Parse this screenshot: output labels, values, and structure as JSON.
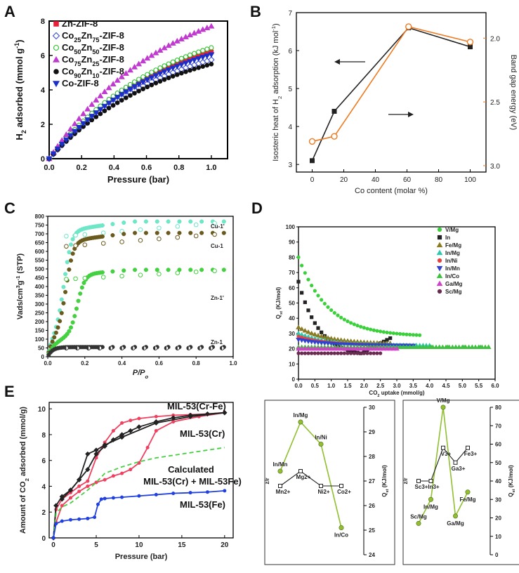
{
  "figure": {
    "panel_labels": [
      "A",
      "B",
      "C",
      "D",
      "E"
    ]
  },
  "chart_data": [
    {
      "id": "A",
      "type": "scatter",
      "title": "",
      "xlabel": "Pressure (bar)",
      "ylabel": "H2 adsorbed (mmol g-1)",
      "ylabel_parts": {
        "main": "H",
        "sub": "2",
        "rest": " adsorbed (mmol g",
        "sup": "-1",
        "end": ")"
      },
      "xlim": [
        0,
        1.1
      ],
      "ylim": [
        0,
        8
      ],
      "xticks": [
        "0.0",
        "0.2",
        "0.4",
        "0.6",
        "0.8",
        "1.0"
      ],
      "yticks": [
        "0",
        "2",
        "4",
        "6",
        "8"
      ],
      "legend_position": "top-left",
      "series": [
        {
          "name": "Zn-ZIF-8",
          "legend_parts": [
            "Zn-ZIF-8"
          ],
          "marker": "square",
          "color": "#e8203a",
          "filled": true,
          "k": 6.2
        },
        {
          "name": "Co25Zn75-ZIF-8",
          "legend_parts": [
            "Co",
            "25",
            "Zn",
            "75",
            "-ZIF-8"
          ],
          "marker": "diamond",
          "color": "#3a4fd8",
          "filled": false,
          "k": 5.75
        },
        {
          "name": "Co50Zn50-ZIF-8",
          "legend_parts": [
            "Co",
            "50",
            "Zn",
            "50",
            "-ZIF-8"
          ],
          "marker": "circle",
          "color": "#2ec02e",
          "filled": false,
          "k": 6.45
        },
        {
          "name": "Co75Zn25-ZIF-8",
          "legend_parts": [
            "Co",
            "75",
            "Zn",
            "25",
            "-ZIF-8"
          ],
          "marker": "triangle",
          "color": "#c03ad0",
          "filled": true,
          "k": 7.7
        },
        {
          "name": "Co90Zn10-ZIF-8",
          "legend_parts": [
            "Co",
            "90",
            "Zn",
            "10",
            "-ZIF-8"
          ],
          "marker": "circle",
          "color": "#111111",
          "filled": true,
          "k": 5.5
        },
        {
          "name": "Co-ZIF-8",
          "legend_parts": [
            "Co-ZIF-8"
          ],
          "marker": "triangle-down",
          "color": "#1a30c8",
          "filled": true,
          "k": 6.05
        }
      ]
    },
    {
      "id": "B",
      "type": "line",
      "xlabel": "Co content (molar %)",
      "ylabel": "Isosteric heat of H2 adsorption (kJ mol-1)",
      "ylabel_parts": {
        "main": "Isosteric heat of H",
        "sub": "2",
        "rest": " adsorption (kJ mol",
        "sup": "-1",
        "end": ")"
      },
      "y2label": "Band gap energy (eV)",
      "xlim": [
        -10,
        110
      ],
      "ylim": [
        2.8,
        7
      ],
      "y2lim": [
        3.05,
        1.8
      ],
      "xticks": [
        "0",
        "20",
        "40",
        "60",
        "80",
        "100"
      ],
      "yticks": [
        "3",
        "4",
        "5",
        "6",
        "7"
      ],
      "y2ticks": [
        "2.0",
        "2.5",
        "3.0"
      ],
      "series": [
        {
          "name": "Isosteric heat",
          "color": "#222222",
          "x": [
            0,
            14,
            61,
            100
          ],
          "y": [
            3.1,
            4.4,
            6.6,
            6.1
          ]
        },
        {
          "name": "Band gap energy",
          "color": "#f07a20",
          "axis": "right",
          "x": [
            0,
            14,
            61,
            100
          ],
          "y": [
            2.81,
            2.77,
            1.91,
            2.03
          ]
        }
      ]
    },
    {
      "id": "C",
      "type": "scatter",
      "xlabel": "P/P0",
      "xlabel_parts": {
        "main": "P/P",
        "sub": "o"
      },
      "ylabel": "Vads/cm3g-1 (STP)",
      "ylabel_parts": {
        "main": "Vads/cm",
        "sup": "3",
        "rest": "g",
        "sup2": "-1",
        "end": " (STP)"
      },
      "xlim": [
        0,
        1.0
      ],
      "ylim": [
        0,
        800
      ],
      "xticks": [
        "0.0",
        "0.2",
        "0.4",
        "0.6",
        "0.8",
        "1.0"
      ],
      "yticks": [
        "0",
        "50",
        "100",
        "150",
        "200",
        "250",
        "300",
        "350",
        "400",
        "450",
        "500",
        "550",
        "600",
        "650",
        "700",
        "750",
        "800"
      ],
      "series": [
        {
          "name": "Cu-1'",
          "color": "#6ee6c8",
          "plateau": 770,
          "step": 0.09
        },
        {
          "name": "Cu-1",
          "color": "#6b5a1e",
          "plateau": 705,
          "step": 0.1
        },
        {
          "name": "Zn-1'",
          "color": "#44d040",
          "plateau": 495,
          "step": 0.16
        },
        {
          "name": "Zn-1",
          "color": "#333333",
          "plateau": 55,
          "step": 0.0
        }
      ]
    },
    {
      "id": "D",
      "type": "scatter",
      "xlabel": "CO2 uptake (mmol/g)",
      "xlabel_parts": {
        "main": "CO",
        "sub": "2",
        "rest": " uptake (mmol/g)"
      },
      "ylabel": "Qst (KJ/mol)",
      "ylabel_parts": {
        "main": "Q",
        "sub": "st",
        "rest": " (KJ/mol)"
      },
      "xlim": [
        0,
        6.0
      ],
      "ylim": [
        0,
        100
      ],
      "xticks": [
        "0.0",
        "0.5",
        "1.0",
        "1.5",
        "2.0",
        "2.5",
        "3.0",
        "3.5",
        "4.0",
        "4.5",
        "5.0",
        "5.5",
        "6.0"
      ],
      "yticks": [
        "0",
        "10",
        "20",
        "30",
        "40",
        "50",
        "60",
        "70",
        "80",
        "90",
        "100"
      ],
      "series": [
        {
          "name": "V/Mg",
          "color": "#3ad03a",
          "start": 80,
          "end": 28,
          "xmax": 3.7
        },
        {
          "name": "In",
          "color": "#222222",
          "start": 64,
          "end": 27,
          "xmax": 2.8
        },
        {
          "name": "Fe/Mg",
          "color": "#8a7a20",
          "start": 34,
          "end": 23,
          "xmax": 2.8
        },
        {
          "name": "In/Mg",
          "color": "#2ec8b0",
          "start": 30,
          "end": 22,
          "xmax": 4.0
        },
        {
          "name": "In/Ni",
          "color": "#e84040",
          "start": 28,
          "end": 22,
          "xmax": 2.6
        },
        {
          "name": "In/Mn",
          "color": "#3040d0",
          "start": 26,
          "end": 22,
          "xmax": 3.5
        },
        {
          "name": "In/Co",
          "color": "#40c040",
          "start": 21,
          "end": 21,
          "xmax": 5.8
        },
        {
          "name": "Ga/Mg",
          "color": "#d040c8",
          "start": 20,
          "end": 22,
          "xmax": 3.0
        },
        {
          "name": "Sc/Mg",
          "color": "#6a2a50",
          "start": 17,
          "end": 21,
          "xmax": 2.5
        }
      ]
    },
    {
      "id": "D-inset-1",
      "type": "line",
      "ylabel_left": "z/r",
      "ylabel_right": "Qst (KJ/mol)",
      "ylabel_right_parts": {
        "main": "Q",
        "sub": "st",
        "rest": " (KJ/mol)"
      },
      "ylim": [
        24,
        30
      ],
      "yticks": [
        "24",
        "25",
        "26",
        "27",
        "28",
        "29",
        "30"
      ],
      "series": [
        {
          "name": "Qst",
          "color": "#90c030",
          "labels": [
            "In/Mn",
            "In/Mg",
            "In/Ni",
            "In/Co"
          ],
          "y": [
            27.4,
            29.4,
            28.5,
            25.1
          ]
        },
        {
          "name": "z/r",
          "color": "#222222",
          "labels": [
            "Mn2+",
            "Mg2+",
            "Ni2+",
            "Co2+"
          ],
          "y": [
            26.8,
            27.4,
            26.8,
            26.8
          ]
        }
      ]
    },
    {
      "id": "D-inset-2",
      "type": "line",
      "ylabel_left": "z/r",
      "ylabel_right": "Qst (KJ/mol)",
      "ylabel_right_parts": {
        "main": "Q",
        "sub": "st",
        "rest": " (KJ/mol)"
      },
      "ylim": [
        0,
        80
      ],
      "yticks": [
        "0",
        "10",
        "20",
        "30",
        "40",
        "50",
        "60",
        "70",
        "80"
      ],
      "series": [
        {
          "name": "Qst",
          "color": "#90c030",
          "labels": [
            "Sc/Mg",
            "In/Mg",
            "V/Mg",
            "Ga/Mg",
            "Fe/Mg"
          ],
          "y": [
            17,
            30,
            80,
            21,
            34
          ]
        },
        {
          "name": "z/r",
          "color": "#222222",
          "labels": [
            "Sc3+",
            "In3+",
            "V3+",
            "Ga3+",
            "Fe3+"
          ],
          "y": [
            40,
            40,
            58,
            50,
            58
          ]
        }
      ]
    },
    {
      "id": "E",
      "type": "line",
      "xlabel": "Pressure (bar)",
      "ylabel": "Amount of CO2 adsorbed (mmol/g)",
      "ylabel_parts": {
        "main": "Amount of CO",
        "sub": "2",
        "rest": " adsorbed (mmol/g)"
      },
      "xlim": [
        -0.5,
        21
      ],
      "ylim": [
        0,
        10.5
      ],
      "xticks": [
        "0",
        "5",
        "10",
        "15",
        "20"
      ],
      "yticks": [
        "0",
        "2",
        "4",
        "6",
        "8",
        "10"
      ],
      "annotations": [
        "MIL-53(Cr-Fe)",
        "MIL-53(Cr)",
        "Calculated",
        "MIL-53(Cr) + MIL-53Fe)",
        "MIL-53(Fe)"
      ],
      "series": [
        {
          "name": "MIL-53(Cr-Fe)",
          "color": "#f04060",
          "x": [
            0,
            0.3,
            1,
            2,
            3,
            4,
            5,
            6,
            7,
            8,
            9,
            10,
            12,
            14,
            16,
            18,
            20
          ],
          "y": [
            0,
            2.2,
            3.0,
            3.5,
            4.0,
            4.4,
            6.2,
            7.4,
            8.3,
            8.9,
            9.1,
            9.25,
            9.4,
            9.5,
            9.55,
            9.6,
            9.7
          ]
        },
        {
          "name": "MIL-53(Cr-Fe) desorption",
          "color": "#f04060",
          "x": [
            20,
            17,
            14,
            12,
            11,
            10,
            9,
            8,
            7,
            6,
            5,
            4,
            3,
            2,
            1,
            0.3
          ],
          "y": [
            9.7,
            9.4,
            9.0,
            8.3,
            7.0,
            5.8,
            5.3,
            5.0,
            4.8,
            4.5,
            4.3,
            4.0,
            3.6,
            3.1,
            2.5,
            1.2
          ]
        },
        {
          "name": "MIL-53(Cr)",
          "color": "#222222",
          "x": [
            0,
            0.3,
            1,
            2,
            3,
            4,
            5,
            6,
            7,
            8,
            9,
            10,
            12,
            14,
            16,
            18,
            20
          ],
          "y": [
            0,
            2.5,
            3.2,
            3.7,
            4.5,
            5.3,
            6.5,
            7.1,
            7.6,
            8.0,
            8.3,
            8.6,
            9.0,
            9.3,
            9.5,
            9.6,
            9.7
          ]
        },
        {
          "name": "MIL-53(Cr) desorption",
          "color": "#222222",
          "x": [
            20,
            16,
            12,
            8,
            6,
            5,
            4,
            3,
            2,
            1
          ],
          "y": [
            9.7,
            9.4,
            8.9,
            7.8,
            7.2,
            6.8,
            6.5,
            4.5,
            3.7,
            3.0
          ]
        },
        {
          "name": "Calculated MIL-53(Cr) + MIL-53Fe)",
          "color": "#44d040",
          "dashed": true,
          "x": [
            0,
            0.3,
            1,
            2,
            3,
            4,
            5,
            6,
            8,
            10,
            12,
            14,
            16,
            18,
            20
          ],
          "y": [
            0,
            1.9,
            2.4,
            2.7,
            3.2,
            3.7,
            4.3,
            5.0,
            5.5,
            5.9,
            6.2,
            6.4,
            6.6,
            6.8,
            7.0
          ]
        },
        {
          "name": "MIL-53(Fe)",
          "color": "#2040e0",
          "x": [
            0,
            0.3,
            1,
            2,
            3,
            4,
            4.8,
            5.2,
            5.6,
            6,
            7,
            8,
            10,
            12,
            14,
            16,
            18,
            20
          ],
          "y": [
            0,
            1.1,
            1.3,
            1.4,
            1.45,
            1.5,
            1.6,
            2.6,
            3.0,
            3.05,
            3.1,
            3.15,
            3.25,
            3.35,
            3.45,
            3.5,
            3.55,
            3.65
          ]
        }
      ]
    }
  ]
}
